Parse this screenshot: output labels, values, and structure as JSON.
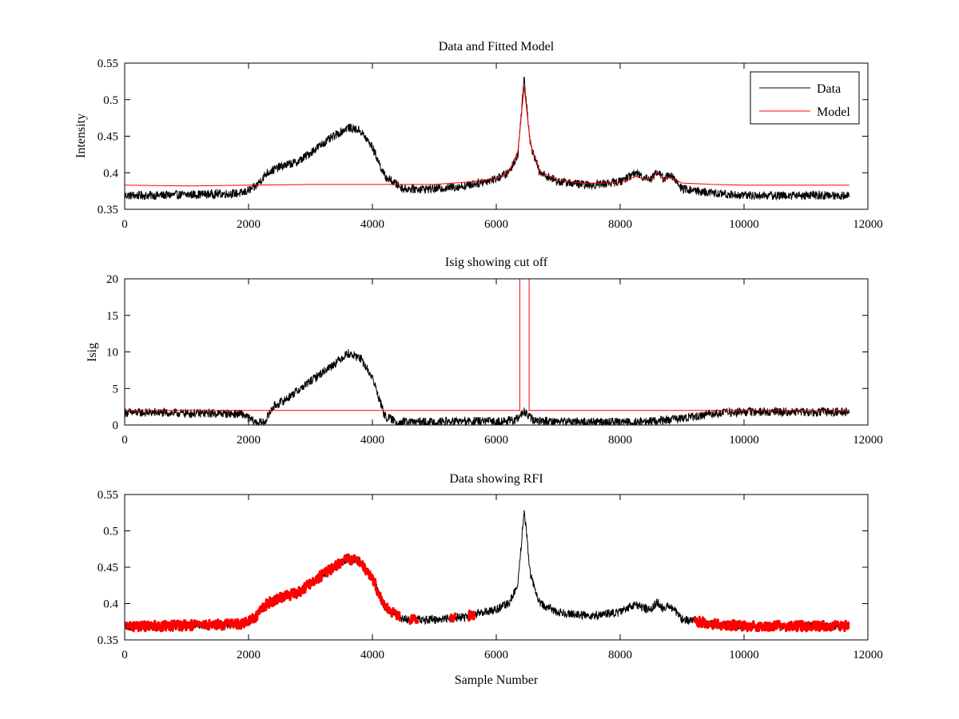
{
  "figure": {
    "background": "#ffffff",
    "data_color": "#000000",
    "model_color": "#ff0000",
    "rfi_color": "#ff0000"
  },
  "chart_data": [
    {
      "id": "p1",
      "type": "line",
      "title": "Data and Fitted Model",
      "xlabel": "",
      "ylabel": "Intensity",
      "xlim": [
        0,
        12000
      ],
      "ylim": [
        0.35,
        0.55
      ],
      "xticks": [
        0,
        2000,
        4000,
        6000,
        8000,
        10000,
        12000
      ],
      "yticks": [
        0.35,
        0.4,
        0.45,
        0.5,
        0.55
      ],
      "xtick_labels": [
        "0",
        "2000",
        "4000",
        "6000",
        "8000",
        "10000",
        "12000"
      ],
      "ytick_labels": [
        "0.35",
        "0.4",
        "0.45",
        "0.5",
        "0.55"
      ],
      "legend": {
        "position": "top-right",
        "entries": [
          "Data",
          "Model"
        ]
      },
      "series": [
        {
          "name": "Data",
          "color": "#000000",
          "noise": 0.012,
          "x": [
            0,
            500,
            1000,
            1500,
            1900,
            2100,
            2300,
            2500,
            2800,
            3200,
            3600,
            3800,
            4000,
            4200,
            4500,
            5000,
            5500,
            6000,
            6200,
            6350,
            6450,
            6550,
            6700,
            7000,
            7500,
            8000,
            8250,
            8350,
            8500,
            8600,
            8700,
            8800,
            9000,
            9500,
            10000,
            10500,
            11000,
            11700
          ],
          "y": [
            0.369,
            0.369,
            0.37,
            0.371,
            0.372,
            0.38,
            0.4,
            0.408,
            0.415,
            0.44,
            0.462,
            0.458,
            0.435,
            0.395,
            0.378,
            0.378,
            0.382,
            0.392,
            0.4,
            0.425,
            0.53,
            0.44,
            0.4,
            0.388,
            0.383,
            0.388,
            0.4,
            0.395,
            0.392,
            0.402,
            0.392,
            0.398,
            0.378,
            0.372,
            0.369,
            0.369,
            0.369,
            0.369
          ]
        },
        {
          "name": "Model",
          "color": "#ff0000",
          "x": [
            0,
            1000,
            2000,
            3000,
            4000,
            5000,
            5500,
            6000,
            6200,
            6350,
            6450,
            6550,
            6700,
            7000,
            7500,
            8000,
            8250,
            8350,
            8500,
            8600,
            8700,
            8800,
            9000,
            9500,
            10000,
            11000,
            11700
          ],
          "y": [
            0.383,
            0.382,
            0.383,
            0.384,
            0.384,
            0.384,
            0.387,
            0.392,
            0.4,
            0.43,
            0.518,
            0.44,
            0.402,
            0.39,
            0.385,
            0.387,
            0.395,
            0.392,
            0.392,
            0.4,
            0.39,
            0.394,
            0.386,
            0.384,
            0.383,
            0.383,
            0.383
          ]
        }
      ]
    },
    {
      "id": "p2",
      "type": "line",
      "title": "Isig showing cut off",
      "xlabel": "",
      "ylabel": "Isig",
      "xlim": [
        0,
        12000
      ],
      "ylim": [
        0,
        20
      ],
      "xticks": [
        0,
        2000,
        4000,
        6000,
        8000,
        10000,
        12000
      ],
      "yticks": [
        0,
        5,
        10,
        15,
        20
      ],
      "xtick_labels": [
        "0",
        "2000",
        "4000",
        "6000",
        "8000",
        "10000",
        "12000"
      ],
      "ytick_labels": [
        "0",
        "5",
        "10",
        "15",
        "20"
      ],
      "series": [
        {
          "name": "Isig",
          "color": "#000000",
          "noise": 1.2,
          "x": [
            0,
            500,
            1000,
            1500,
            1900,
            2100,
            2250,
            2400,
            2600,
            3000,
            3400,
            3600,
            3800,
            4000,
            4200,
            4400,
            5000,
            5500,
            6000,
            6300,
            6450,
            6600,
            7000,
            7500,
            8000,
            8500,
            9000,
            9500,
            10000,
            10500,
            11000,
            11700
          ],
          "y": [
            1.7,
            1.7,
            1.6,
            1.6,
            1.5,
            0.4,
            0.3,
            2.5,
            3.5,
            6.0,
            8.5,
            9.8,
            9.2,
            6.5,
            1.2,
            0.4,
            0.4,
            0.5,
            0.5,
            0.6,
            1.8,
            0.6,
            0.5,
            0.4,
            0.4,
            0.5,
            0.9,
            1.6,
            1.8,
            1.8,
            1.8,
            1.8
          ]
        },
        {
          "name": "Cut off",
          "color": "#ff0000",
          "x": [
            0,
            6380,
            6380,
            6530,
            6530,
            11700
          ],
          "y": [
            2.0,
            2.0,
            20,
            20,
            2.0,
            2.0
          ]
        }
      ]
    },
    {
      "id": "p3",
      "type": "line",
      "title": "Data showing RFI",
      "xlabel": "Sample Number",
      "ylabel": "",
      "xlim": [
        0,
        12000
      ],
      "ylim": [
        0.35,
        0.55
      ],
      "xticks": [
        0,
        2000,
        4000,
        6000,
        8000,
        10000,
        12000
      ],
      "yticks": [
        0.35,
        0.4,
        0.45,
        0.5,
        0.55
      ],
      "xtick_labels": [
        "0",
        "2000",
        "4000",
        "6000",
        "8000",
        "10000",
        "12000"
      ],
      "ytick_labels": [
        "0.35",
        "0.4",
        "0.45",
        "0.5",
        "0.55"
      ],
      "series": [
        {
          "name": "Data",
          "color": "#000000",
          "noise": 0.012,
          "x": [
            0,
            500,
            1000,
            1500,
            1900,
            2100,
            2300,
            2500,
            2800,
            3200,
            3600,
            3800,
            4000,
            4200,
            4500,
            5000,
            5500,
            6000,
            6200,
            6350,
            6450,
            6550,
            6700,
            7000,
            7500,
            8000,
            8250,
            8350,
            8500,
            8600,
            8700,
            8800,
            9000,
            9500,
            10000,
            10500,
            11000,
            11700
          ],
          "y": [
            0.369,
            0.369,
            0.37,
            0.371,
            0.372,
            0.38,
            0.4,
            0.408,
            0.415,
            0.44,
            0.462,
            0.458,
            0.435,
            0.395,
            0.378,
            0.378,
            0.382,
            0.392,
            0.4,
            0.425,
            0.53,
            0.44,
            0.4,
            0.388,
            0.383,
            0.388,
            0.4,
            0.395,
            0.392,
            0.402,
            0.392,
            0.398,
            0.378,
            0.372,
            0.369,
            0.369,
            0.369,
            0.369
          ]
        },
        {
          "name": "RFI",
          "color": "#ff0000",
          "marker": true,
          "noise": 0.014,
          "ranges": [
            [
              0,
              4450
            ],
            [
              4600,
              4750
            ],
            [
              5250,
              5350
            ],
            [
              5550,
              5650
            ],
            [
              9200,
              11700
            ]
          ]
        }
      ]
    }
  ]
}
